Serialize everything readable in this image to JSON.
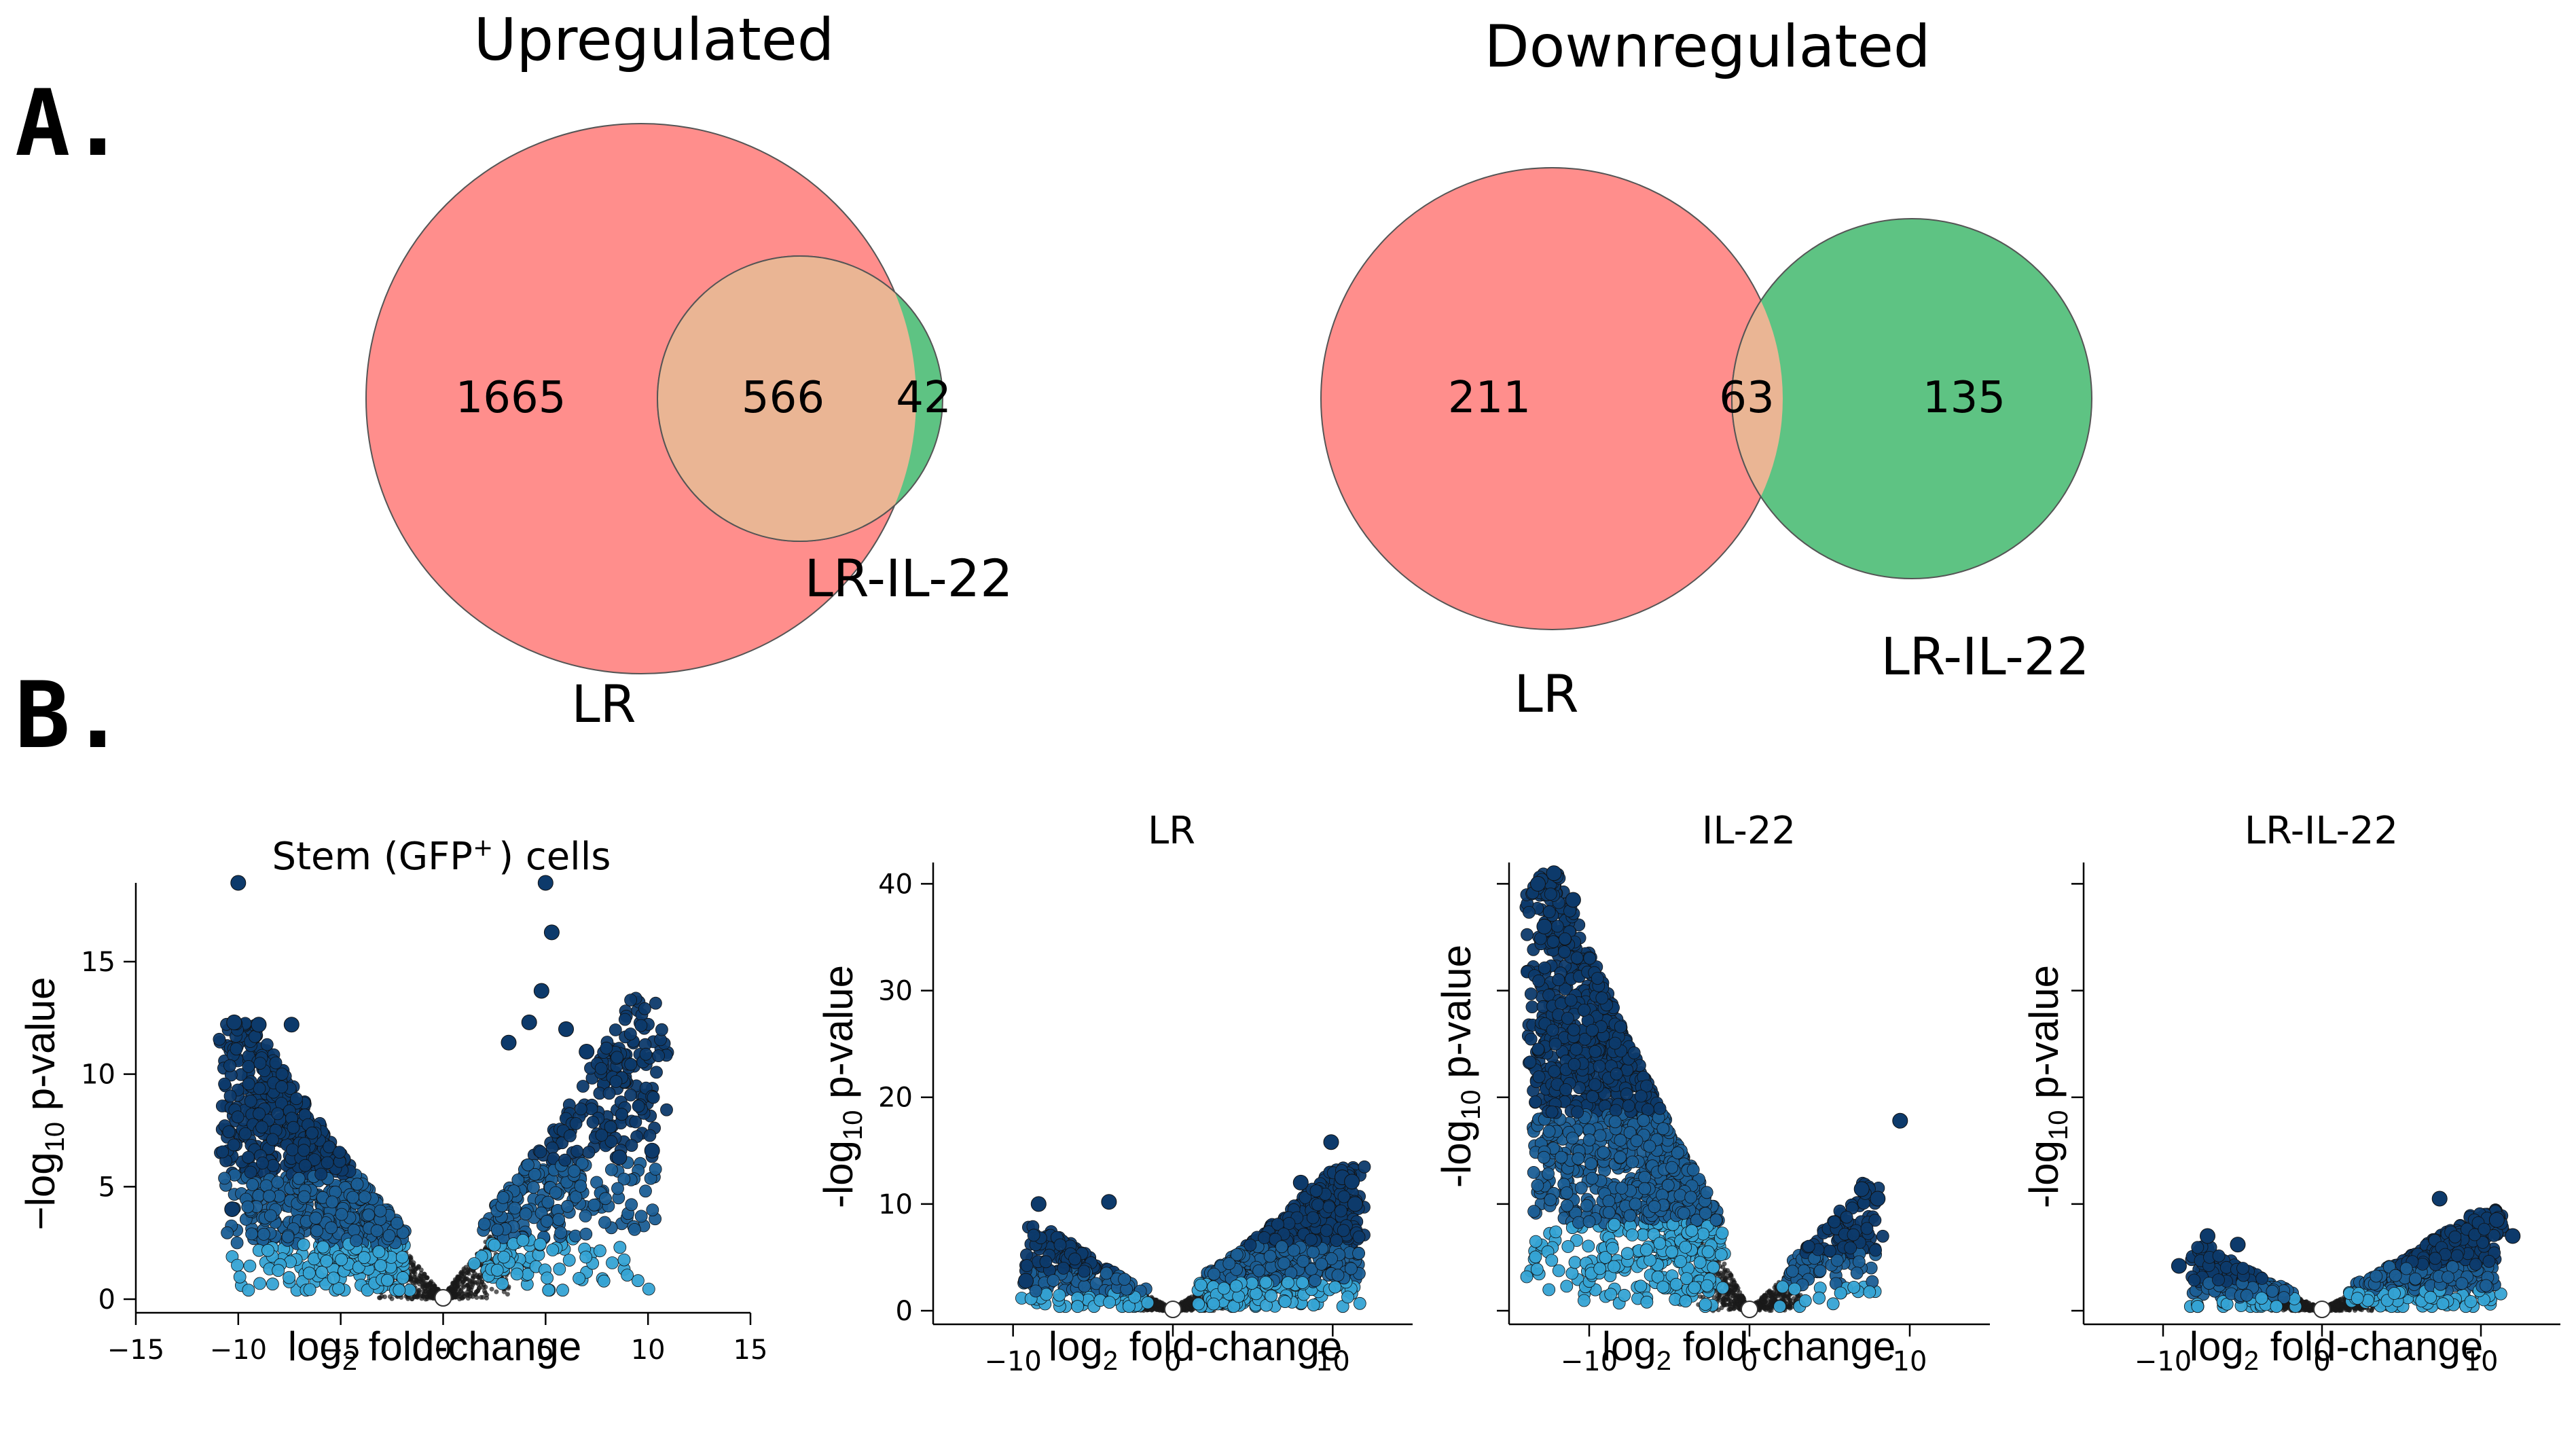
{
  "panel_labels": {
    "a": "A.",
    "b": "B."
  },
  "colors": {
    "left_set": "#ff8e8c",
    "right_set": "#5ec383",
    "overlap": "#eab594",
    "outline": "#555555",
    "point_dark": "#0d3a6b",
    "point_mid": "#1b5e95",
    "point_light": "#35a3d4",
    "point_ns": "#1a1a1a"
  },
  "chart_data": [
    {
      "type": "venn",
      "title": "Upregulated",
      "sets": [
        "LR",
        "LR-IL-22"
      ],
      "left_only": 1665,
      "overlap": 566,
      "right_only": 42,
      "left_label": "LR",
      "right_label": "LR-IL-22",
      "left_only_text": "1665",
      "overlap_text": "566",
      "right_only_text": "42"
    },
    {
      "type": "venn",
      "title": "Downregulated",
      "sets": [
        "LR",
        "LR-IL-22"
      ],
      "left_only": 211,
      "overlap": 63,
      "right_only": 135,
      "left_label": "LR",
      "right_label": "LR-IL-22",
      "left_only_text": "211",
      "overlap_text": "63",
      "right_only_text": "135"
    },
    {
      "type": "scatter",
      "subtype": "volcano",
      "id": "stem",
      "title_main": "Stem (GFP",
      "title_sup": "+",
      "title_end": ") cells",
      "ylabel_pre": "−log",
      "ylabel_sub": "10",
      "ylabel_post": " p-value",
      "xlabel_pre": "log",
      "xlabel_sub": "2",
      "xlabel_post": " fold-change",
      "xlim": [
        -15,
        15
      ],
      "ylim": [
        0,
        18.5
      ],
      "xticks": [
        -15,
        -10,
        -5,
        0,
        5,
        10,
        15
      ],
      "xtick_labels": [
        "−15",
        "−10",
        "−5",
        "0",
        "5",
        "10",
        "15"
      ],
      "yticks": [
        0,
        5,
        10,
        15
      ],
      "ytick_labels": [
        "0",
        "5",
        "10",
        "15"
      ],
      "envelope": {
        "neg_x": -10.5,
        "neg_y": 12.3,
        "pos_x": 10.5,
        "pos_y": 13.5,
        "neg_density": 900,
        "pos_density": 420
      },
      "highlights": [
        [
          -10,
          18.5
        ],
        [
          5,
          18.5
        ],
        [
          5.3,
          16.3
        ],
        [
          4.8,
          13.7
        ],
        [
          -10.2,
          12.3
        ],
        [
          -9,
          12.2
        ],
        [
          -7.4,
          12.2
        ],
        [
          10.2,
          6.6
        ],
        [
          8.6,
          6.3
        ],
        [
          -10.3,
          4.0
        ],
        [
          6.0,
          12.0
        ],
        [
          7.0,
          11.0
        ],
        [
          4.2,
          12.3
        ],
        [
          3.2,
          11.4
        ]
      ],
      "zero_marker": true
    },
    {
      "type": "scatter",
      "subtype": "volcano",
      "id": "lr",
      "title_main": "LR",
      "ylabel_pre": "-log",
      "ylabel_sub": "10",
      "ylabel_post": " p-value",
      "xlabel_pre": "log",
      "xlabel_sub": "2",
      "xlabel_post": " fold-change",
      "xlim": [
        -15,
        15
      ],
      "ylim": [
        0,
        42
      ],
      "xticks": [
        -10,
        0,
        10
      ],
      "xtick_labels": [
        "−10",
        "0",
        "10"
      ],
      "yticks": [
        0,
        10,
        20,
        30,
        40
      ],
      "ytick_labels": [
        "0",
        "10",
        "20",
        "30",
        "40"
      ],
      "envelope": {
        "neg_x": -9,
        "neg_y": 8,
        "pos_x": 11.5,
        "pos_y": 13.5,
        "neg_density": 220,
        "pos_density": 800
      },
      "highlights": [
        [
          9.9,
          15.8
        ],
        [
          -8.4,
          10.0
        ],
        [
          -4.0,
          10.2
        ],
        [
          -9.2,
          2.8
        ],
        [
          11.4,
          10.0
        ],
        [
          10.6,
          12.5
        ],
        [
          11.2,
          12.1
        ],
        [
          8.0,
          12.0
        ]
      ],
      "zero_marker": true
    },
    {
      "type": "scatter",
      "subtype": "volcano",
      "id": "il22",
      "title_main": "IL-22",
      "ylabel_pre": "-log",
      "ylabel_sub": "10",
      "ylabel_post": " p-value",
      "xlabel_pre": "log",
      "xlabel_sub": "2",
      "xlabel_post": " fold-change",
      "xlim": [
        -15,
        15
      ],
      "ylim": [
        0,
        42
      ],
      "xticks": [
        -10,
        0,
        10
      ],
      "xtick_labels": [
        "−10",
        "0",
        "10"
      ],
      "yticks": [
        0,
        10,
        20,
        30,
        40
      ],
      "ytick_labels": [
        "",
        "",
        "",
        "",
        ""
      ],
      "envelope": {
        "neg_x": -13.5,
        "neg_y": 41,
        "pos_x": 8,
        "pos_y": 12,
        "neg_density": 1400,
        "pos_density": 160
      },
      "highlights": [
        [
          -12.2,
          41.0
        ],
        [
          -13.2,
          40.0
        ],
        [
          9.4,
          17.8
        ],
        [
          8.0,
          10.5
        ],
        [
          7.0,
          11.4
        ],
        [
          -11.0,
          38.5
        ],
        [
          -12.8,
          36.0
        ]
      ],
      "zero_marker": true
    },
    {
      "type": "scatter",
      "subtype": "volcano",
      "id": "lr_il22",
      "title_main": "LR-IL-22",
      "ylabel_pre": "-log",
      "ylabel_sub": "10",
      "ylabel_post": " p-value",
      "xlabel_pre": "log",
      "xlabel_sub": "2",
      "xlabel_post": " fold-change",
      "xlim": [
        -15,
        15
      ],
      "ylim": [
        0,
        42
      ],
      "xticks": [
        -10,
        0,
        10
      ],
      "xtick_labels": [
        "−10",
        "0",
        "10"
      ],
      "yticks": [
        0,
        10,
        20,
        30,
        40
      ],
      "ytick_labels": [
        "",
        "",
        "",
        "",
        ""
      ],
      "envelope": {
        "neg_x": -8,
        "neg_y": 6,
        "pos_x": 11,
        "pos_y": 9.5,
        "neg_density": 200,
        "pos_density": 520
      },
      "highlights": [
        [
          7.4,
          10.5
        ],
        [
          12.0,
          7.0
        ],
        [
          11.0,
          8.5
        ],
        [
          -9.0,
          4.2
        ],
        [
          -5.3,
          6.2
        ],
        [
          -7.2,
          7.0
        ]
      ],
      "zero_marker": true
    }
  ]
}
